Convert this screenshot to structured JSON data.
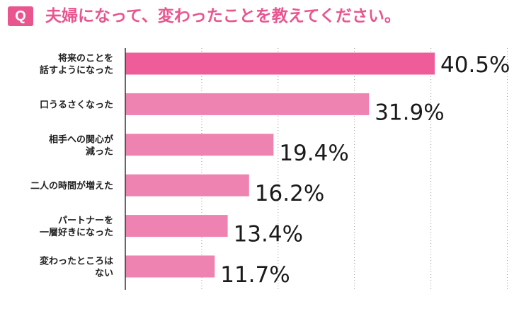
{
  "header": {
    "badge": "Q",
    "question": "夫婦になって、変わったことを教えてください。"
  },
  "colors": {
    "accent": "#e9558f",
    "bar_top": "#ee5d9a",
    "bar": "#ee82b0",
    "grid": "#9a9a9a",
    "axis": "#333333"
  },
  "chart_data": {
    "type": "bar",
    "orientation": "horizontal",
    "categories": [
      [
        "将来のことを",
        "話すようになった"
      ],
      [
        "口うるさくなった"
      ],
      [
        "相手への関心が",
        "減った"
      ],
      [
        "二人の時間が増えた"
      ],
      [
        "パートナーを",
        "一層好きになった"
      ],
      [
        "変わったところは",
        "ない"
      ]
    ],
    "values": [
      40.5,
      31.9,
      19.4,
      16.2,
      13.4,
      11.7
    ],
    "value_labels": [
      "40.5%",
      "31.9%",
      "19.4%",
      "16.2%",
      "13.4%",
      "11.7%"
    ],
    "xlim": [
      0,
      50
    ],
    "grid": true
  }
}
